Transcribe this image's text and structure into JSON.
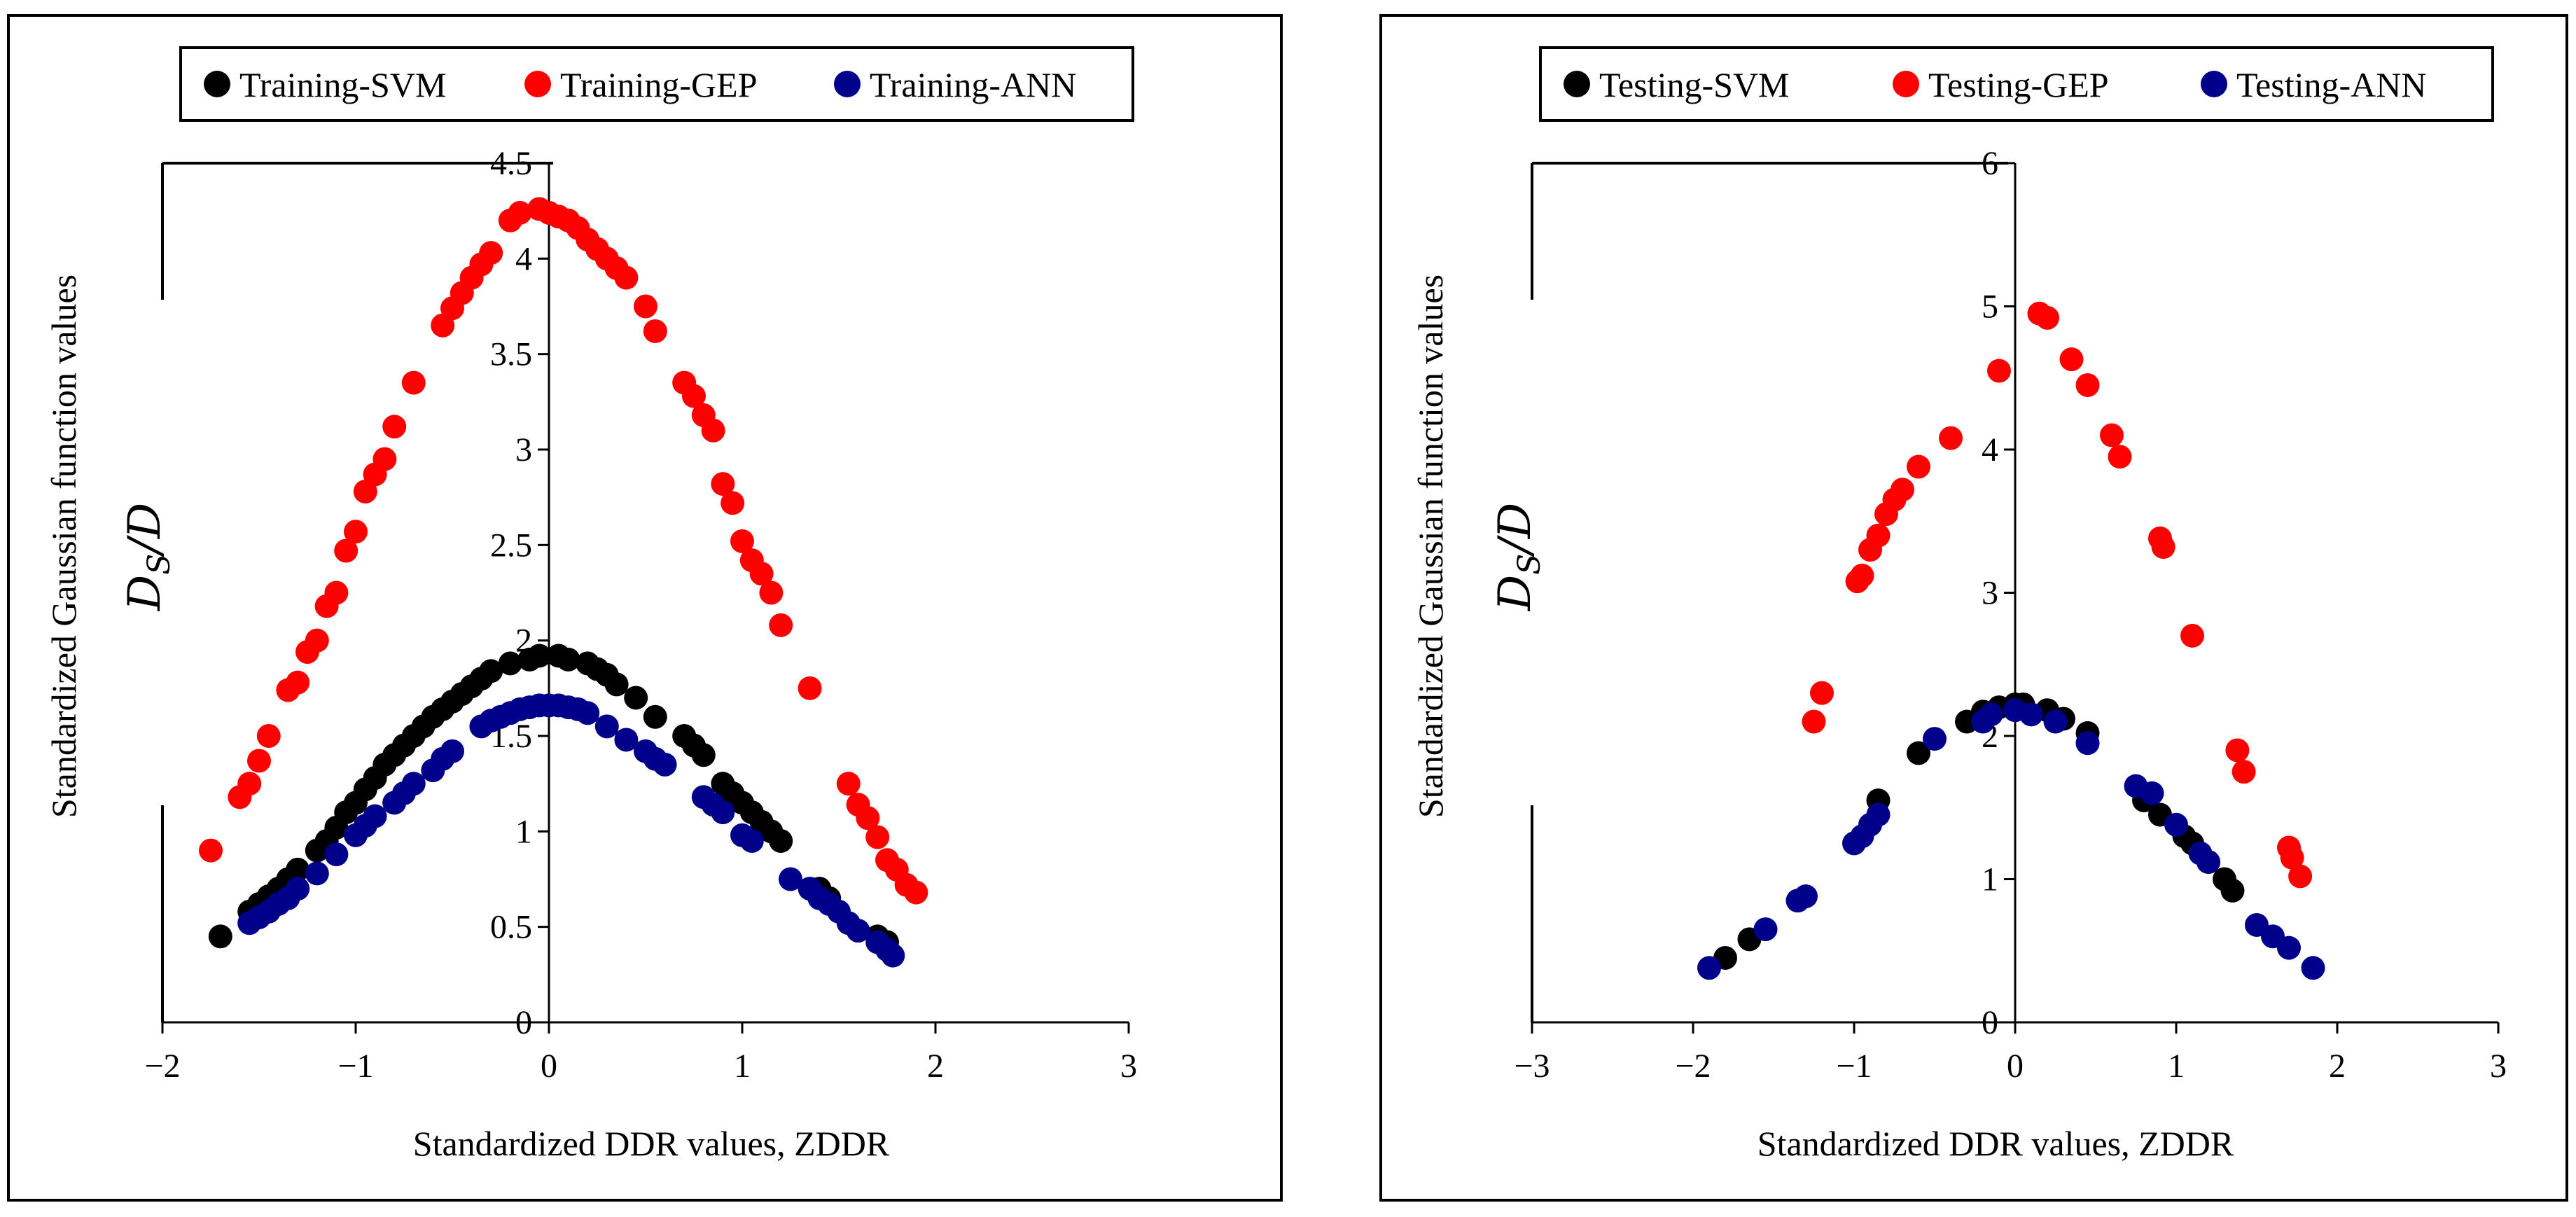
{
  "chart_data": [
    {
      "type": "scatter",
      "xlabel": "Standardized DDR values, ZDDR",
      "ylabel": "Standardized Gaussian function values",
      "ylabel_math": "D",
      "ylabel_math_sub": "S",
      "ylabel_math_tail": "/D",
      "xlim": [
        -2,
        3
      ],
      "ylim": [
        0,
        4.5
      ],
      "x_ticks": [
        {
          "value": -2,
          "label": "−2"
        },
        {
          "value": -1,
          "label": "−1"
        },
        {
          "value": 0,
          "label": "0"
        },
        {
          "value": 1,
          "label": "1"
        },
        {
          "value": 2,
          "label": "2"
        },
        {
          "value": 3,
          "label": "3"
        }
      ],
      "y_ticks": [
        {
          "value": 0,
          "label": "0"
        },
        {
          "value": 0.5,
          "label": "0.5"
        },
        {
          "value": 1,
          "label": "1"
        },
        {
          "value": 1.5,
          "label": "1.5"
        },
        {
          "value": 2,
          "label": "2"
        },
        {
          "value": 2.5,
          "label": "2.5"
        },
        {
          "value": 3,
          "label": "3"
        },
        {
          "value": 3.5,
          "label": "3.5"
        },
        {
          "value": 4,
          "label": "4"
        },
        {
          "value": 4.5,
          "label": "4.5"
        }
      ],
      "legend": [
        {
          "name": "Training-SVM",
          "color": "#000000"
        },
        {
          "name": "Training-GEP",
          "color": "#ff0000"
        },
        {
          "name": "Training-ANN",
          "color": "#00008b"
        }
      ],
      "series": [
        {
          "name": "Training-SVM",
          "color": "#000000",
          "x": [
            -1.7,
            -1.55,
            -1.5,
            -1.45,
            -1.4,
            -1.35,
            -1.3,
            -1.2,
            -1.15,
            -1.1,
            -1.05,
            -1.0,
            -0.95,
            -0.9,
            -0.85,
            -0.8,
            -0.75,
            -0.7,
            -0.65,
            -0.6,
            -0.55,
            -0.5,
            -0.45,
            -0.4,
            -0.35,
            -0.3,
            -0.2,
            -0.1,
            -0.05,
            0.05,
            0.1,
            0.2,
            0.25,
            0.3,
            0.35,
            0.45,
            0.55,
            0.7,
            0.75,
            0.8,
            0.9,
            0.95,
            1.0,
            1.05,
            1.1,
            1.15,
            1.2,
            1.4,
            1.45,
            1.7,
            1.75
          ],
          "y": [
            0.45,
            0.58,
            0.62,
            0.66,
            0.7,
            0.75,
            0.8,
            0.9,
            0.95,
            1.02,
            1.1,
            1.15,
            1.22,
            1.28,
            1.35,
            1.4,
            1.45,
            1.5,
            1.55,
            1.6,
            1.64,
            1.68,
            1.72,
            1.76,
            1.8,
            1.84,
            1.88,
            1.9,
            1.92,
            1.92,
            1.9,
            1.88,
            1.85,
            1.82,
            1.77,
            1.7,
            1.6,
            1.5,
            1.45,
            1.4,
            1.25,
            1.2,
            1.15,
            1.1,
            1.05,
            1.0,
            0.95,
            0.7,
            0.65,
            0.45,
            0.42
          ]
        },
        {
          "name": "Training-GEP",
          "color": "#ff0000",
          "x": [
            -1.75,
            -1.6,
            -1.55,
            -1.5,
            -1.45,
            -1.35,
            -1.3,
            -1.25,
            -1.2,
            -1.15,
            -1.1,
            -1.05,
            -1.0,
            -0.95,
            -0.9,
            -0.85,
            -0.8,
            -0.7,
            -0.55,
            -0.5,
            -0.45,
            -0.4,
            -0.35,
            -0.3,
            -0.2,
            -0.15,
            -0.05,
            0.0,
            0.05,
            0.1,
            0.15,
            0.2,
            0.25,
            0.3,
            0.35,
            0.4,
            0.5,
            0.55,
            0.7,
            0.75,
            0.8,
            0.85,
            0.9,
            0.95,
            1.0,
            1.05,
            1.1,
            1.15,
            1.2,
            1.35,
            1.55,
            1.6,
            1.65,
            1.7,
            1.75,
            1.8,
            1.85,
            1.9
          ],
          "y": [
            0.9,
            1.18,
            1.25,
            1.37,
            1.5,
            1.74,
            1.78,
            1.94,
            2.0,
            2.18,
            2.25,
            2.47,
            2.57,
            2.78,
            2.87,
            2.95,
            3.12,
            3.35,
            3.65,
            3.74,
            3.82,
            3.9,
            3.97,
            4.03,
            4.2,
            4.24,
            4.26,
            4.24,
            4.22,
            4.2,
            4.16,
            4.1,
            4.05,
            4.0,
            3.95,
            3.9,
            3.75,
            3.62,
            3.35,
            3.28,
            3.18,
            3.1,
            2.82,
            2.72,
            2.52,
            2.42,
            2.35,
            2.25,
            2.08,
            1.75,
            1.25,
            1.14,
            1.07,
            0.97,
            0.85,
            0.8,
            0.72,
            0.68
          ]
        },
        {
          "name": "Training-ANN",
          "color": "#00008b",
          "x": [
            -1.55,
            -1.5,
            -1.45,
            -1.4,
            -1.35,
            -1.3,
            -1.2,
            -1.1,
            -1.0,
            -0.95,
            -0.9,
            -0.8,
            -0.75,
            -0.7,
            -0.6,
            -0.55,
            -0.5,
            -0.35,
            -0.3,
            -0.25,
            -0.2,
            -0.15,
            -0.1,
            -0.05,
            0.0,
            0.05,
            0.1,
            0.15,
            0.2,
            0.3,
            0.4,
            0.5,
            0.55,
            0.6,
            0.8,
            0.85,
            0.9,
            1.0,
            1.05,
            1.25,
            1.35,
            1.4,
            1.45,
            1.5,
            1.55,
            1.6,
            1.7,
            1.75,
            1.78
          ],
          "y": [
            0.52,
            0.55,
            0.58,
            0.62,
            0.65,
            0.7,
            0.78,
            0.88,
            0.98,
            1.03,
            1.08,
            1.15,
            1.2,
            1.25,
            1.32,
            1.38,
            1.42,
            1.55,
            1.58,
            1.6,
            1.62,
            1.64,
            1.65,
            1.66,
            1.66,
            1.66,
            1.65,
            1.64,
            1.62,
            1.55,
            1.48,
            1.42,
            1.38,
            1.35,
            1.18,
            1.14,
            1.1,
            0.98,
            0.95,
            0.75,
            0.7,
            0.65,
            0.62,
            0.58,
            0.52,
            0.48,
            0.42,
            0.38,
            0.35
          ]
        }
      ]
    },
    {
      "type": "scatter",
      "xlabel": "Standardized DDR values, ZDDR",
      "ylabel": "Standardized Gaussian function values",
      "ylabel_math": "D",
      "ylabel_math_sub": "S",
      "ylabel_math_tail": "/D",
      "xlim": [
        -3,
        3
      ],
      "ylim": [
        0,
        6
      ],
      "x_ticks": [
        {
          "value": -3,
          "label": "−3"
        },
        {
          "value": -2,
          "label": "−2"
        },
        {
          "value": -1,
          "label": "−1"
        },
        {
          "value": 0,
          "label": "0"
        },
        {
          "value": 1,
          "label": "1"
        },
        {
          "value": 2,
          "label": "2"
        },
        {
          "value": 3,
          "label": "3"
        }
      ],
      "y_ticks": [
        {
          "value": 0,
          "label": "0"
        },
        {
          "value": 1,
          "label": "1"
        },
        {
          "value": 2,
          "label": "2"
        },
        {
          "value": 3,
          "label": "3"
        },
        {
          "value": 4,
          "label": "4"
        },
        {
          "value": 5,
          "label": "5"
        },
        {
          "value": 6,
          "label": "6"
        }
      ],
      "legend": [
        {
          "name": "Testing-SVM",
          "color": "#000000"
        },
        {
          "name": "Testing-GEP",
          "color": "#ff0000"
        },
        {
          "name": "Testing-ANN",
          "color": "#00008b"
        }
      ],
      "series": [
        {
          "name": "Testing-SVM",
          "color": "#000000",
          "x": [
            -1.8,
            -1.65,
            -0.85,
            -0.6,
            -0.3,
            -0.2,
            -0.1,
            0.0,
            0.05,
            0.2,
            0.3,
            0.45,
            0.8,
            0.9,
            1.05,
            1.1,
            1.2,
            1.3,
            1.35
          ],
          "y": [
            0.45,
            0.58,
            1.55,
            1.88,
            2.1,
            2.17,
            2.2,
            2.22,
            2.22,
            2.18,
            2.12,
            2.02,
            1.55,
            1.45,
            1.3,
            1.25,
            1.12,
            1.0,
            0.92
          ]
        },
        {
          "name": "Testing-GEP",
          "color": "#ff0000",
          "x": [
            -1.25,
            -1.2,
            -0.98,
            -0.95,
            -0.9,
            -0.85,
            -0.8,
            -0.75,
            -0.7,
            -0.6,
            -0.4,
            -0.1,
            0.15,
            0.2,
            0.35,
            0.45,
            0.6,
            0.65,
            0.9,
            0.92,
            1.1,
            1.38,
            1.42,
            1.7,
            1.72,
            1.77
          ],
          "y": [
            2.1,
            2.3,
            3.08,
            3.12,
            3.3,
            3.4,
            3.55,
            3.65,
            3.72,
            3.88,
            4.08,
            4.55,
            4.95,
            4.92,
            4.63,
            4.45,
            4.1,
            3.95,
            3.38,
            3.32,
            2.7,
            1.9,
            1.75,
            1.22,
            1.15,
            1.02
          ]
        },
        {
          "name": "Testing-ANN",
          "color": "#00008b",
          "x": [
            -1.9,
            -1.55,
            -1.35,
            -1.3,
            -1.0,
            -0.95,
            -0.9,
            -0.85,
            -0.5,
            -0.2,
            -0.15,
            0.0,
            0.1,
            0.25,
            0.45,
            0.75,
            0.85,
            1.0,
            1.15,
            1.2,
            1.5,
            1.6,
            1.7,
            1.85
          ],
          "y": [
            0.38,
            0.65,
            0.85,
            0.88,
            1.25,
            1.3,
            1.38,
            1.45,
            1.98,
            2.1,
            2.15,
            2.18,
            2.15,
            2.1,
            1.95,
            1.65,
            1.6,
            1.38,
            1.18,
            1.12,
            0.68,
            0.6,
            0.52,
            0.38
          ]
        }
      ]
    }
  ]
}
